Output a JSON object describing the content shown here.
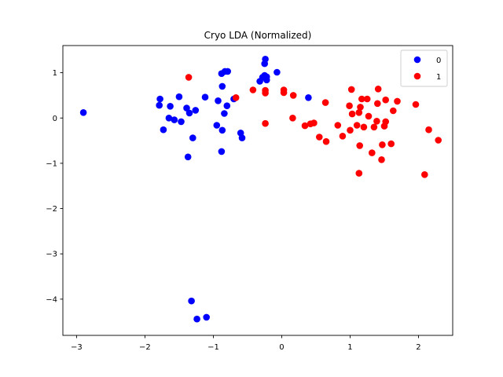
{
  "chart_data": {
    "type": "scatter",
    "title": "Cryo LDA (Normalized)",
    "xlabel": "",
    "ylabel": "",
    "xlim": [
      -3.2,
      2.5
    ],
    "ylim": [
      -4.8,
      1.6
    ],
    "xticks": [
      -3,
      -2,
      -1,
      0,
      1,
      2
    ],
    "yticks": [
      1,
      0,
      -1,
      -2,
      -3,
      -4
    ],
    "grid": false,
    "legend": "top-right",
    "series": [
      {
        "name": "0",
        "color": "#0000ff",
        "points": [
          [
            -2.9,
            0.12
          ],
          [
            -1.78,
            0.42
          ],
          [
            -1.79,
            0.28
          ],
          [
            -1.73,
            -0.26
          ],
          [
            -1.65,
            0.0
          ],
          [
            -1.63,
            0.26
          ],
          [
            -1.57,
            -0.04
          ],
          [
            -1.5,
            0.47
          ],
          [
            -1.47,
            -0.08
          ],
          [
            -1.39,
            0.22
          ],
          [
            -1.35,
            0.11
          ],
          [
            -1.3,
            -0.44
          ],
          [
            -1.26,
            0.17
          ],
          [
            -1.37,
            -0.86
          ],
          [
            -1.12,
            0.46
          ],
          [
            -0.93,
            0.38
          ],
          [
            -0.95,
            -0.16
          ],
          [
            -0.87,
            -0.27
          ],
          [
            -0.87,
            0.7
          ],
          [
            -0.88,
            0.98
          ],
          [
            -0.83,
            1.03
          ],
          [
            -0.79,
            1.03
          ],
          [
            -0.84,
            0.1
          ],
          [
            -0.8,
            0.27
          ],
          [
            -0.7,
            0.42
          ],
          [
            -0.6,
            -0.33
          ],
          [
            -0.58,
            -0.44
          ],
          [
            -0.88,
            -0.74
          ],
          [
            -0.32,
            0.81
          ],
          [
            -0.25,
            0.94
          ],
          [
            -0.28,
            0.9
          ],
          [
            -0.22,
            0.84
          ],
          [
            -0.22,
            0.91
          ],
          [
            -0.25,
            1.2
          ],
          [
            -0.24,
            1.3
          ],
          [
            -0.07,
            1.01
          ],
          [
            0.39,
            0.45
          ],
          [
            -1.32,
            -4.04
          ],
          [
            -1.24,
            -4.44
          ],
          [
            -1.1,
            -4.4
          ]
        ]
      },
      {
        "name": "1",
        "color": "#ff0000",
        "points": [
          [
            -1.36,
            0.9
          ],
          [
            -0.67,
            0.45
          ],
          [
            -0.42,
            0.62
          ],
          [
            -0.24,
            0.61
          ],
          [
            -0.24,
            0.55
          ],
          [
            -0.24,
            -0.12
          ],
          [
            0.03,
            0.62
          ],
          [
            0.03,
            0.56
          ],
          [
            0.17,
            0.5
          ],
          [
            0.16,
            0.0
          ],
          [
            0.34,
            -0.17
          ],
          [
            0.42,
            -0.13
          ],
          [
            0.47,
            -0.11
          ],
          [
            0.55,
            -0.42
          ],
          [
            0.64,
            0.34
          ],
          [
            0.65,
            -0.52
          ],
          [
            0.82,
            -0.16
          ],
          [
            0.89,
            -0.4
          ],
          [
            0.99,
            0.27
          ],
          [
            1.0,
            -0.27
          ],
          [
            1.02,
            0.63
          ],
          [
            1.03,
            0.09
          ],
          [
            1.1,
            -0.16
          ],
          [
            1.13,
            0.12
          ],
          [
            1.15,
            0.24
          ],
          [
            1.17,
            0.42
          ],
          [
            1.25,
            0.42
          ],
          [
            1.2,
            -0.2
          ],
          [
            1.27,
            0.04
          ],
          [
            1.14,
            -0.61
          ],
          [
            1.13,
            -1.22
          ],
          [
            1.32,
            -0.77
          ],
          [
            1.35,
            -0.2
          ],
          [
            1.39,
            -0.07
          ],
          [
            1.4,
            0.32
          ],
          [
            1.41,
            0.64
          ],
          [
            1.46,
            -0.92
          ],
          [
            1.47,
            -0.59
          ],
          [
            1.5,
            -0.18
          ],
          [
            1.52,
            -0.08
          ],
          [
            1.52,
            0.4
          ],
          [
            1.6,
            -0.57
          ],
          [
            1.63,
            0.16
          ],
          [
            1.69,
            0.37
          ],
          [
            1.96,
            0.3
          ],
          [
            2.09,
            -1.25
          ],
          [
            2.15,
            -0.26
          ],
          [
            2.29,
            -0.49
          ]
        ]
      }
    ]
  }
}
